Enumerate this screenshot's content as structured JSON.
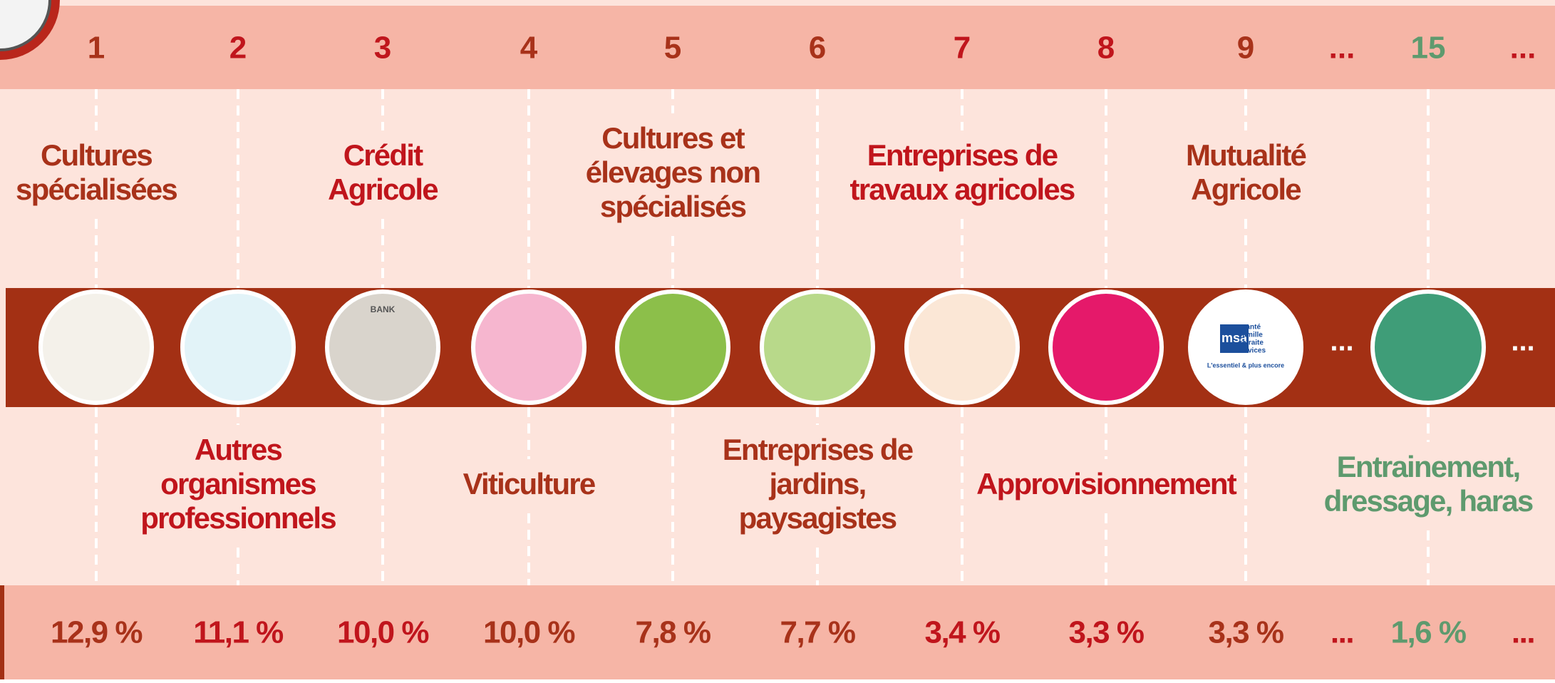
{
  "columns": [
    {
      "rank": "1",
      "label": [
        "Cultures",
        "spécialisées"
      ],
      "percent": "12,9 %",
      "color": "#a8321a",
      "icon_fill": "#f4f1ea"
    },
    {
      "rank": "2",
      "label": [
        "Autres",
        "organismes",
        "professionnels"
      ],
      "percent": "11,1 %",
      "color": "#c0151c",
      "icon_fill": "#e2f3f8"
    },
    {
      "rank": "3",
      "label": [
        "Crédit",
        "Agricole"
      ],
      "percent": "10,0 %",
      "color": "#c0151c",
      "icon_fill": "#d9d4cc",
      "icon_text": "BANK"
    },
    {
      "rank": "4",
      "label": [
        "Viticulture"
      ],
      "percent": "10,0 %",
      "color": "#a8321a",
      "icon_fill": "#f6b6cf"
    },
    {
      "rank": "5",
      "label": [
        "Cultures et",
        "élevages non",
        "spécialisés"
      ],
      "percent": "7,8 %",
      "color": "#a8321a",
      "icon_fill": "#8cbf4a"
    },
    {
      "rank": "6",
      "label": [
        "Entreprises de",
        "jardins,",
        "paysagistes"
      ],
      "percent": "7,7 %",
      "color": "#a8321a",
      "icon_fill": "#b8d98a"
    },
    {
      "rank": "7",
      "label": [
        "Entreprises de",
        "travaux agricoles"
      ],
      "percent": "3,4 %",
      "color": "#c0151c",
      "icon_fill": "#fbe7d6"
    },
    {
      "rank": "8",
      "label": [
        "Approvisionnement"
      ],
      "percent": "3,3 %",
      "color": "#c0151c",
      "icon_fill": "#e5196a"
    },
    {
      "rank": "9",
      "label": [
        "Mutualité",
        "Agricole"
      ],
      "percent": "3,3 %",
      "color": "#a8321a",
      "icon_fill": "#ffffff",
      "logo": {
        "name": "msa",
        "lines": [
          "santé",
          "famille",
          "retraite",
          "services"
        ],
        "tagline": "L'essentiel & plus encore"
      }
    },
    {
      "rank": "...",
      "percent": "...",
      "color": "#c0151c",
      "icon_text": "..."
    },
    {
      "rank": "15",
      "label": [
        "Entrainement,",
        "dressage, haras"
      ],
      "percent": "1,6 %",
      "color": "#5e9a6e",
      "icon_fill": "#3f9d78"
    },
    {
      "rank": "...",
      "percent": "...",
      "color": "#c0151c",
      "icon_text": "..."
    }
  ]
}
